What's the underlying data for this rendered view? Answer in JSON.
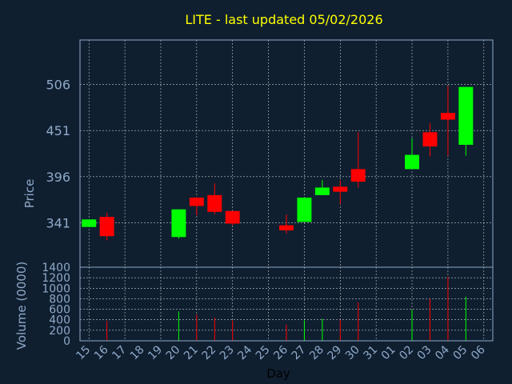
{
  "chart_data": {
    "type": "candlestick",
    "title": "LITE - last updated 05/02/2026",
    "xlabel": "Day",
    "price_panel": {
      "ylabel": "Price",
      "yticks": [
        341,
        396,
        451,
        506
      ],
      "ylim": [
        288,
        559
      ]
    },
    "volume_panel": {
      "ylabel": "Volume (0000)",
      "yticks": [
        0,
        200,
        400,
        600,
        800,
        1000,
        1200,
        1400
      ],
      "ylim": [
        0,
        1400
      ]
    },
    "categories": [
      "15",
      "16",
      "17",
      "18",
      "19",
      "20",
      "21",
      "22",
      "23",
      "24",
      "25",
      "26",
      "27",
      "28",
      "29",
      "30",
      "31",
      "01",
      "02",
      "03",
      "04",
      "05",
      "06"
    ],
    "colors": {
      "up": "#00ff00",
      "down": "#ff0000",
      "background": "#0f1f30",
      "grid": "#ffffff",
      "axis_text": "#8fa9c8",
      "title": "#ffff00"
    },
    "candles": [
      {
        "day": "15",
        "open": 336,
        "close": 345,
        "high": 345,
        "low": 336,
        "volume": 0
      },
      {
        "day": "16",
        "open": 348,
        "close": 325,
        "high": 353,
        "low": 320,
        "volume": 380
      },
      {
        "day": "20",
        "open": 324,
        "close": 357,
        "high": 357,
        "low": 322,
        "volume": 560
      },
      {
        "day": "21",
        "open": 371,
        "close": 361,
        "high": 372,
        "low": 350,
        "volume": 500
      },
      {
        "day": "22",
        "open": 374,
        "close": 354,
        "high": 388,
        "low": 351,
        "volume": 440
      },
      {
        "day": "23",
        "open": 355,
        "close": 340,
        "high": 355,
        "low": 338,
        "volume": 390
      },
      {
        "day": "26",
        "open": 338,
        "close": 332,
        "high": 351,
        "low": 328,
        "volume": 310
      },
      {
        "day": "27",
        "open": 342,
        "close": 371,
        "high": 371,
        "low": 342,
        "volume": 390
      },
      {
        "day": "28",
        "open": 374,
        "close": 383,
        "high": 392,
        "low": 374,
        "volume": 420
      },
      {
        "day": "29",
        "open": 384,
        "close": 378,
        "high": 392,
        "low": 363,
        "volume": 400
      },
      {
        "day": "30",
        "open": 405,
        "close": 390,
        "high": 449,
        "low": 383,
        "volume": 730
      },
      {
        "day": "02",
        "open": 405,
        "close": 422,
        "high": 442,
        "low": 405,
        "volume": 590
      },
      {
        "day": "03",
        "open": 449,
        "close": 432,
        "high": 460,
        "low": 420,
        "volume": 800
      },
      {
        "day": "04",
        "open": 472,
        "close": 464,
        "high": 504,
        "low": 421,
        "volume": 1220
      },
      {
        "day": "05",
        "open": 434,
        "close": 503,
        "high": 503,
        "low": 421,
        "volume": 840
      }
    ]
  }
}
